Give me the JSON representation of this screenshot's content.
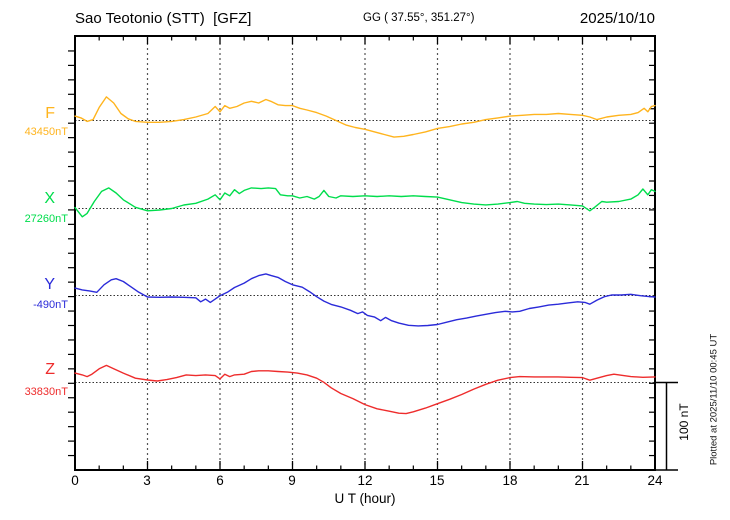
{
  "header": {
    "station_title": "Sao Teotonio (STT)  [GFZ]",
    "coords": "GG ( 37.55°, 351.27°)",
    "date": "2025/10/10"
  },
  "annotations": {
    "plotted_note": "Plotted at 2025/11/10 00:45 UT"
  },
  "chart_data": {
    "type": "line",
    "title": "Sao Teotonio (STT) [GFZ] magnetogram 2025/10/10",
    "xlabel": "U T (hour)",
    "x_range": [
      0,
      24
    ],
    "x_ticks": [
      "0",
      "3",
      "6",
      "9",
      "12",
      "15",
      "18",
      "21",
      "24"
    ],
    "grid": "dotted vertical every 3 h, dotted baseline per component",
    "scale_bar": {
      "label": "100 nT",
      "value_nT": 100
    },
    "units": "nT",
    "series": [
      {
        "name": "F",
        "baseline_label": "43450nT",
        "baseline_value": 43450,
        "color": "#FFB41E",
        "points": [
          [
            0,
            5
          ],
          [
            0.25,
            3
          ],
          [
            0.5,
            -1
          ],
          [
            0.75,
            1
          ],
          [
            1,
            15
          ],
          [
            1.3,
            27
          ],
          [
            1.6,
            20
          ],
          [
            1.9,
            8
          ],
          [
            2.2,
            2
          ],
          [
            2.5,
            -1
          ],
          [
            3,
            -2
          ],
          [
            3.5,
            -2
          ],
          [
            4,
            -1
          ],
          [
            4.5,
            1
          ],
          [
            5,
            4
          ],
          [
            5.5,
            8
          ],
          [
            5.8,
            16
          ],
          [
            6,
            10
          ],
          [
            6.2,
            17
          ],
          [
            6.4,
            14
          ],
          [
            6.7,
            16
          ],
          [
            7,
            20
          ],
          [
            7.3,
            22
          ],
          [
            7.6,
            20
          ],
          [
            7.9,
            24
          ],
          [
            8.1,
            22
          ],
          [
            8.4,
            18
          ],
          [
            8.7,
            17
          ],
          [
            9,
            17
          ],
          [
            9.3,
            14
          ],
          [
            9.6,
            12
          ],
          [
            10,
            9
          ],
          [
            10.4,
            5
          ],
          [
            10.8,
            0
          ],
          [
            11.2,
            -5
          ],
          [
            11.6,
            -8
          ],
          [
            12,
            -10
          ],
          [
            12.4,
            -13
          ],
          [
            12.8,
            -16
          ],
          [
            13.2,
            -19
          ],
          [
            13.6,
            -18
          ],
          [
            14,
            -16
          ],
          [
            14.5,
            -13
          ],
          [
            15,
            -9
          ],
          [
            15.5,
            -7
          ],
          [
            16,
            -4
          ],
          [
            16.5,
            -2
          ],
          [
            17,
            1
          ],
          [
            17.5,
            3
          ],
          [
            18,
            5
          ],
          [
            18.5,
            6
          ],
          [
            19,
            7
          ],
          [
            19.5,
            7
          ],
          [
            20,
            8
          ],
          [
            20.5,
            7
          ],
          [
            21,
            6
          ],
          [
            21.3,
            4
          ],
          [
            21.6,
            1
          ],
          [
            22,
            4
          ],
          [
            22.5,
            6
          ],
          [
            23,
            7
          ],
          [
            23.3,
            9
          ],
          [
            23.55,
            14
          ],
          [
            23.7,
            10
          ],
          [
            23.85,
            16
          ],
          [
            24,
            17
          ]
        ]
      },
      {
        "name": "X",
        "baseline_label": "27260nT",
        "baseline_value": 27260,
        "color": "#00DD4C",
        "points": [
          [
            0,
            1
          ],
          [
            0.3,
            -9.5
          ],
          [
            0.5,
            -5.6
          ],
          [
            0.8,
            8
          ],
          [
            1.1,
            19.5
          ],
          [
            1.4,
            23.5
          ],
          [
            1.7,
            17.7
          ],
          [
            2,
            10
          ],
          [
            2.5,
            1.4
          ],
          [
            3,
            -2.6
          ],
          [
            3.5,
            -1.7
          ],
          [
            4,
            0
          ],
          [
            4.5,
            4
          ],
          [
            5,
            6
          ],
          [
            5.5,
            10.7
          ],
          [
            5.8,
            15.7
          ],
          [
            6,
            10
          ],
          [
            6.2,
            17.7
          ],
          [
            6.4,
            14.5
          ],
          [
            6.6,
            21.5
          ],
          [
            6.8,
            17
          ],
          [
            7,
            20.7
          ],
          [
            7.3,
            23.5
          ],
          [
            7.7,
            22.7
          ],
          [
            8,
            23.5
          ],
          [
            8.3,
            22.7
          ],
          [
            8.5,
            15.7
          ],
          [
            8.8,
            14.5
          ],
          [
            9,
            14.5
          ],
          [
            9.3,
            12
          ],
          [
            9.6,
            13.7
          ],
          [
            9.9,
            10.7
          ],
          [
            10.1,
            13.7
          ],
          [
            10.3,
            20.7
          ],
          [
            10.5,
            13.7
          ],
          [
            10.8,
            12
          ],
          [
            11,
            14.5
          ],
          [
            11.5,
            13.7
          ],
          [
            12,
            14.5
          ],
          [
            12.5,
            13.7
          ],
          [
            13,
            14.5
          ],
          [
            13.5,
            13.7
          ],
          [
            14,
            14.5
          ],
          [
            14.5,
            13.7
          ],
          [
            15,
            13
          ],
          [
            15.5,
            10
          ],
          [
            16,
            6.7
          ],
          [
            16.5,
            5
          ],
          [
            17,
            4.1
          ],
          [
            17.5,
            5
          ],
          [
            18,
            6.7
          ],
          [
            18.3,
            8
          ],
          [
            18.6,
            6
          ],
          [
            19,
            5
          ],
          [
            19.5,
            4.5
          ],
          [
            20,
            5
          ],
          [
            20.5,
            4.1
          ],
          [
            21,
            3
          ],
          [
            21.3,
            -2.6
          ],
          [
            21.5,
            1.4
          ],
          [
            21.8,
            8
          ],
          [
            22,
            7.2
          ],
          [
            22.5,
            8
          ],
          [
            23,
            10.7
          ],
          [
            23.3,
            15.7
          ],
          [
            23.5,
            22.3
          ],
          [
            23.7,
            15.7
          ],
          [
            23.85,
            21.5
          ],
          [
            24,
            19.5
          ]
        ]
      },
      {
        "name": "Y",
        "baseline_label": "-490nT",
        "baseline_value": -490,
        "color": "#2B2BD9",
        "points": [
          [
            0,
            8.4
          ],
          [
            0.3,
            6.4
          ],
          [
            0.6,
            5.2
          ],
          [
            0.9,
            3.7
          ],
          [
            1.2,
            12.2
          ],
          [
            1.5,
            18
          ],
          [
            1.7,
            19.2
          ],
          [
            2,
            16
          ],
          [
            2.3,
            10.2
          ],
          [
            2.6,
            4.4
          ],
          [
            3,
            -1.7
          ],
          [
            3.5,
            -2.1
          ],
          [
            4,
            -1.7
          ],
          [
            4.5,
            -2.1
          ],
          [
            5,
            -2.6
          ],
          [
            5.2,
            -7.2
          ],
          [
            5.4,
            -4.1
          ],
          [
            5.6,
            -7.9
          ],
          [
            5.8,
            -4.1
          ],
          [
            6,
            -0.2
          ],
          [
            6.3,
            3.7
          ],
          [
            6.6,
            9.1
          ],
          [
            7,
            14.2
          ],
          [
            7.3,
            19.2
          ],
          [
            7.6,
            22.7
          ],
          [
            7.9,
            24.7
          ],
          [
            8.1,
            23
          ],
          [
            8.4,
            20.7
          ],
          [
            8.7,
            16
          ],
          [
            9,
            12.2
          ],
          [
            9.4,
            9.5
          ],
          [
            9.7,
            4.4
          ],
          [
            10,
            -1.4
          ],
          [
            10.3,
            -6.4
          ],
          [
            10.6,
            -10.2
          ],
          [
            11,
            -13
          ],
          [
            11.4,
            -16.9
          ],
          [
            11.7,
            -20.7
          ],
          [
            11.9,
            -18.8
          ],
          [
            12.1,
            -22.7
          ],
          [
            12.4,
            -24.7
          ],
          [
            12.65,
            -28.8
          ],
          [
            12.85,
            -25
          ],
          [
            13.1,
            -28.8
          ],
          [
            13.4,
            -31.6
          ],
          [
            13.8,
            -34
          ],
          [
            14.2,
            -34.7
          ],
          [
            14.6,
            -34.3
          ],
          [
            15,
            -33.1
          ],
          [
            15.4,
            -30.4
          ],
          [
            15.8,
            -27.7
          ],
          [
            16.2,
            -25.8
          ],
          [
            16.6,
            -23.5
          ],
          [
            17,
            -21.5
          ],
          [
            17.4,
            -19.6
          ],
          [
            17.8,
            -18
          ],
          [
            18.1,
            -18.8
          ],
          [
            18.4,
            -18
          ],
          [
            18.8,
            -14.9
          ],
          [
            19.2,
            -13
          ],
          [
            19.6,
            -11
          ],
          [
            20,
            -9.9
          ],
          [
            20.4,
            -8.4
          ],
          [
            20.8,
            -7.2
          ],
          [
            21.1,
            -7.9
          ],
          [
            21.3,
            -9.9
          ],
          [
            21.6,
            -5.2
          ],
          [
            21.9,
            -1.4
          ],
          [
            22.2,
            0.6
          ],
          [
            22.6,
            0.6
          ],
          [
            23,
            1.4
          ],
          [
            23.4,
            -0.2
          ],
          [
            23.7,
            -1
          ],
          [
            24,
            -1.7
          ]
        ]
      },
      {
        "name": "Z",
        "baseline_label": "33830nT",
        "baseline_value": 33830,
        "color": "#EE2C2C",
        "points": [
          [
            0,
            10.7
          ],
          [
            0.3,
            8.7
          ],
          [
            0.5,
            6.7
          ],
          [
            0.7,
            9.5
          ],
          [
            1,
            15.7
          ],
          [
            1.3,
            19.5
          ],
          [
            1.6,
            15.7
          ],
          [
            2,
            10.7
          ],
          [
            2.5,
            4.9
          ],
          [
            3,
            2.9
          ],
          [
            3.4,
            1.7
          ],
          [
            3.8,
            3.3
          ],
          [
            4.2,
            5.6
          ],
          [
            4.6,
            8.7
          ],
          [
            5,
            7.9
          ],
          [
            5.4,
            8.7
          ],
          [
            5.8,
            7.9
          ],
          [
            6,
            4.1
          ],
          [
            6.2,
            9.5
          ],
          [
            6.4,
            6.7
          ],
          [
            6.6,
            8.7
          ],
          [
            7,
            9.5
          ],
          [
            7.3,
            12.6
          ],
          [
            7.6,
            13.4
          ],
          [
            8,
            13.4
          ],
          [
            8.4,
            12.6
          ],
          [
            8.8,
            11.9
          ],
          [
            9.2,
            10.7
          ],
          [
            9.6,
            8.7
          ],
          [
            10,
            4.9
          ],
          [
            10.3,
            0.2
          ],
          [
            10.6,
            -6
          ],
          [
            11,
            -12.6
          ],
          [
            11.5,
            -18.4
          ],
          [
            12,
            -25.3
          ],
          [
            12.5,
            -30
          ],
          [
            13,
            -32.8
          ],
          [
            13.4,
            -35.1
          ],
          [
            13.7,
            -35.5
          ],
          [
            14,
            -33.5
          ],
          [
            14.5,
            -29.3
          ],
          [
            15,
            -24.2
          ],
          [
            15.5,
            -19.2
          ],
          [
            16,
            -13.7
          ],
          [
            16.5,
            -7.6
          ],
          [
            17,
            -2.1
          ],
          [
            17.5,
            2.6
          ],
          [
            18,
            5.6
          ],
          [
            18.4,
            6.7
          ],
          [
            19,
            6.4
          ],
          [
            19.5,
            6.4
          ],
          [
            20,
            6.4
          ],
          [
            20.5,
            6
          ],
          [
            21,
            5.6
          ],
          [
            21.3,
            2.6
          ],
          [
            21.6,
            4.9
          ],
          [
            22,
            7.9
          ],
          [
            22.3,
            9.5
          ],
          [
            22.7,
            7.9
          ],
          [
            23,
            6.7
          ],
          [
            23.5,
            6
          ],
          [
            24,
            6.4
          ]
        ]
      }
    ]
  }
}
